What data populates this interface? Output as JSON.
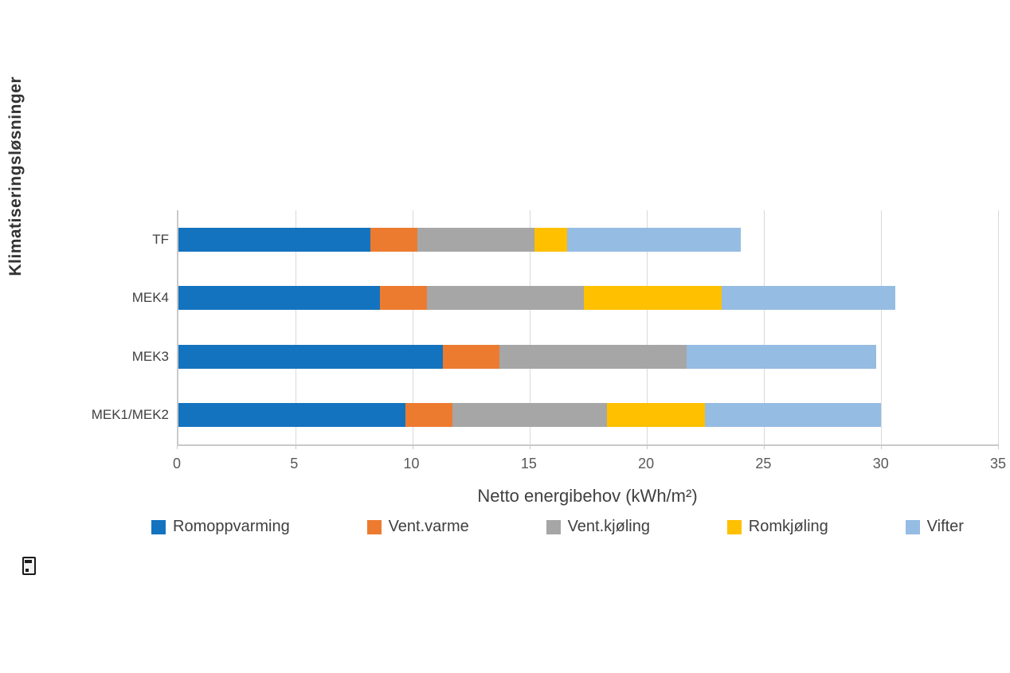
{
  "page": {
    "background": "#ffffff"
  },
  "footer": {
    "missing_glyph": ""
  },
  "chart_data": {
    "type": "bar",
    "variant": "horizontal-stacked",
    "title": "",
    "xlabel": "Netto energibehov (kWh/m²)",
    "ylabel": "Klimatiseringsløsninger",
    "xlim": [
      0,
      35
    ],
    "xticks": [
      0,
      5,
      10,
      15,
      20,
      25,
      30,
      35
    ],
    "grid": true,
    "legend_position": "bottom",
    "categories": [
      "TF",
      "MEK4",
      "MEK3",
      "MEK1/MEK2"
    ],
    "series": [
      {
        "name": "Romoppvarming",
        "color": "#1473bf",
        "values": [
          8.2,
          8.6,
          11.3,
          9.7
        ]
      },
      {
        "name": "Vent.varme",
        "color": "#ec7b30",
        "values": [
          2.0,
          2.0,
          2.4,
          2.0
        ]
      },
      {
        "name": "Vent.kjøling",
        "color": "#a6a6a6",
        "values": [
          5.0,
          6.7,
          8.0,
          6.6
        ]
      },
      {
        "name": "Romkjøling",
        "color": "#ffc000",
        "values": [
          1.4,
          5.9,
          0,
          4.2
        ]
      },
      {
        "name": "Vifter",
        "color": "#95bce2",
        "values": [
          7.4,
          7.4,
          8.1,
          7.5
        ]
      }
    ],
    "colors": {
      "gridline": "#d9d9d9",
      "axis_line": "#c9c9c9",
      "tick_text": "#595959",
      "label_text": "#404040"
    }
  }
}
